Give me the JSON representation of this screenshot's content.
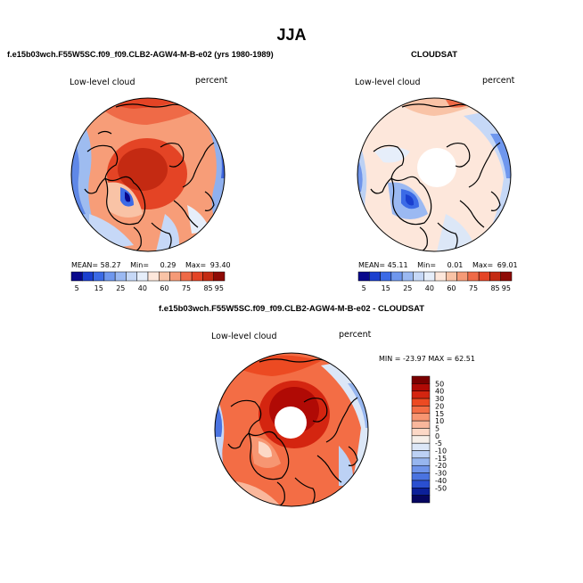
{
  "page": {
    "title": "JJA"
  },
  "panel_model": {
    "header": "f.e15b03wch.F55W5SC.f09_f09.CLB2-AGW4-M-B-e02 (yrs 1980-1989)",
    "left_label": "Low-level cloud",
    "right_label": "percent",
    "stats": {
      "mean_label": "MEAN=",
      "mean": "58.27",
      "min_label": "Min=",
      "min": "0.29",
      "max_label": "Max=",
      "max": "93.40"
    }
  },
  "panel_obs": {
    "header": "CLOUDSAT",
    "left_label": "Low-level cloud",
    "right_label": "percent",
    "stats": {
      "mean_label": "MEAN=",
      "mean": "45.11",
      "min_label": "Min=",
      "min": "0.01",
      "max_label": "Max=",
      "max": "69.01"
    }
  },
  "panel_diff": {
    "header": "f.e15b03wch.F55W5SC.f09_f09.CLB2-AGW4-M-B-e02 - CLOUDSAT",
    "left_label": "Low-level cloud",
    "right_label": "percent",
    "minmax": "MIN = -23.97 MAX =  62.51"
  },
  "chart_data": [
    {
      "type": "heatmap",
      "projection": "north polar stereographic",
      "title": "f.e15b03wch.F55W5SC.f09_f09.CLB2-AGW4-M-B-e02 (yrs 1980-1989)",
      "variable": "Low-level cloud",
      "units": "percent",
      "mean": 58.27,
      "min": 0.29,
      "max": 93.4,
      "colorbar_ticks": [
        "5",
        "15",
        "25",
        "40",
        "60",
        "75",
        "85",
        "95"
      ],
      "colorbar_colors": [
        "#08088c",
        "#1a3fcf",
        "#3b6ae6",
        "#6f97ee",
        "#9bb9f2",
        "#c6d8f7",
        "#e6eefa",
        "#fde7db",
        "#f9c3a6",
        "#f59a77",
        "#ef6a47",
        "#e44425",
        "#c42a12",
        "#8e0a05"
      ]
    },
    {
      "type": "heatmap",
      "projection": "north polar stereographic",
      "title": "CLOUDSAT",
      "variable": "Low-level cloud",
      "units": "percent",
      "mean": 45.11,
      "min": 0.01,
      "max": 69.01,
      "colorbar_ticks": [
        "5",
        "15",
        "25",
        "40",
        "60",
        "75",
        "85",
        "95"
      ],
      "colorbar_colors": [
        "#08088c",
        "#1a3fcf",
        "#3b6ae6",
        "#6f97ee",
        "#9bb9f2",
        "#c6d8f7",
        "#e6eefa",
        "#fde7db",
        "#f9c3a6",
        "#f59a77",
        "#ef6a47",
        "#e44425",
        "#c42a12",
        "#8e0a05"
      ]
    },
    {
      "type": "heatmap",
      "projection": "north polar stereographic",
      "title": "f.e15b03wch.F55W5SC.f09_f09.CLB2-AGW4-M-B-e02 - CLOUDSAT",
      "variable": "Low-level cloud",
      "units": "percent",
      "min": -23.97,
      "max": 62.51,
      "colorbar_ticks": [
        "50",
        "40",
        "30",
        "20",
        "15",
        "10",
        "5",
        "0",
        "-5",
        "-10",
        "-15",
        "-20",
        "-30",
        "-40",
        "-50"
      ],
      "colorbar_colors": [
        "#7a0000",
        "#b00a05",
        "#d42510",
        "#ec4a22",
        "#f36d45",
        "#f79672",
        "#f9b79c",
        "#fcd8c6",
        "#f6efe9",
        "#dce7f7",
        "#bcd1f4",
        "#97b6ef",
        "#6f94ea",
        "#4a73e0",
        "#2a4fd0",
        "#0c2099",
        "#060660"
      ]
    }
  ]
}
